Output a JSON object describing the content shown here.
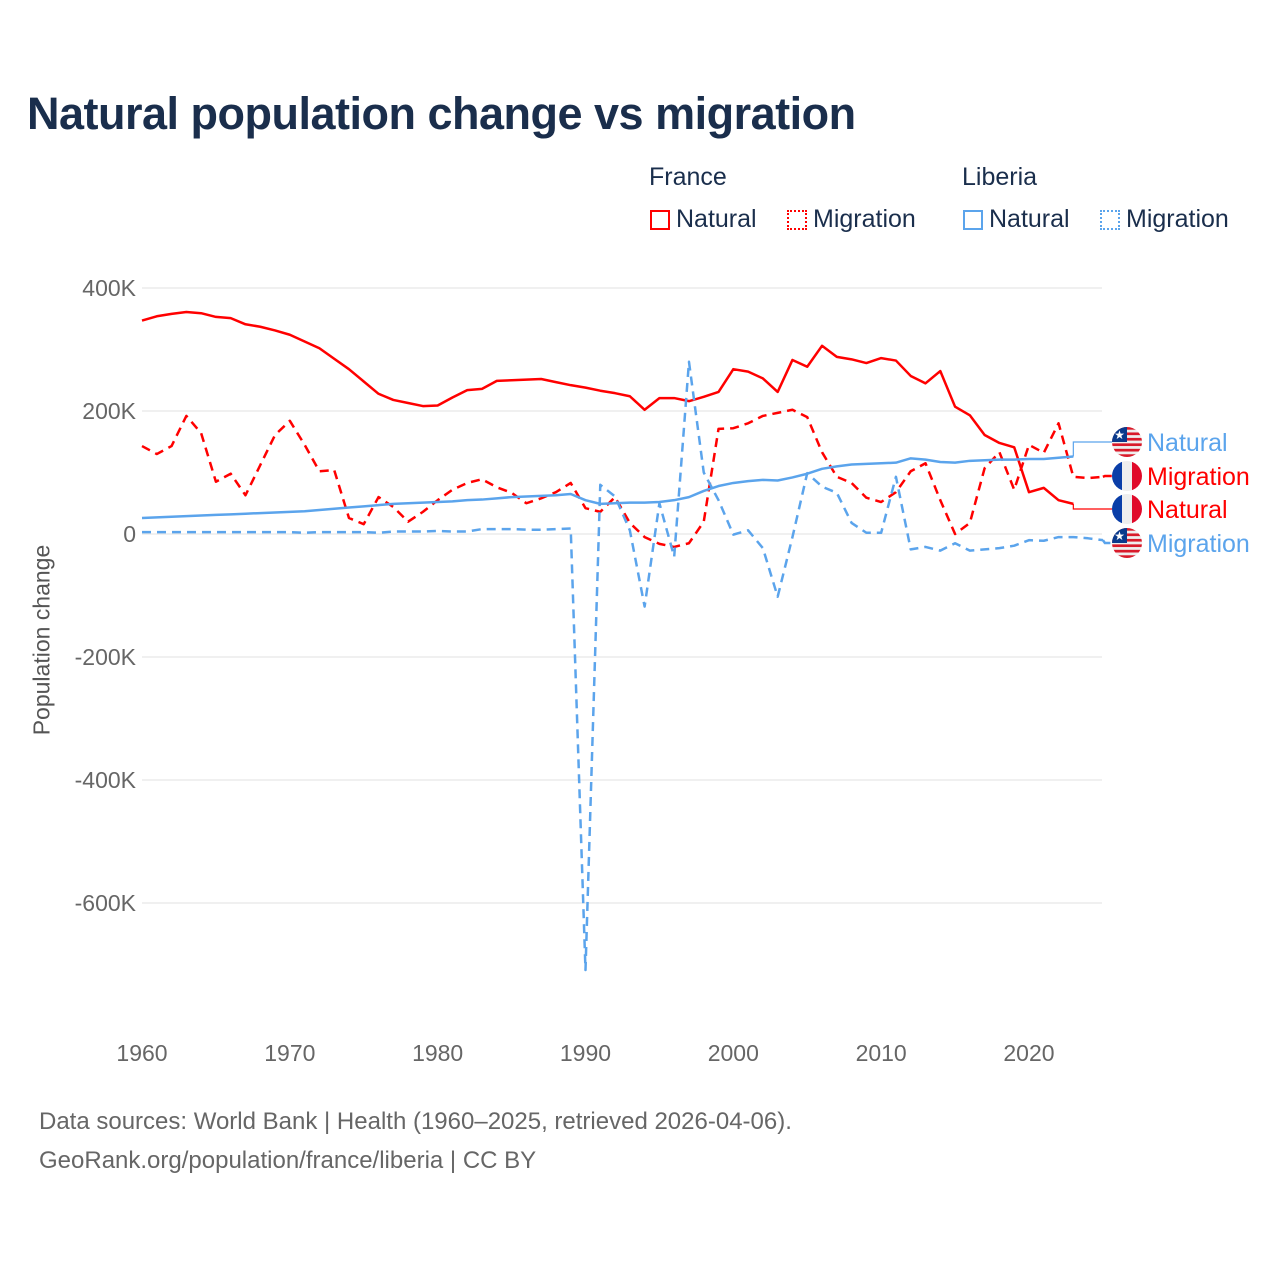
{
  "title": "Natural population change vs migration",
  "legend": {
    "groups": [
      {
        "name": "France",
        "items": [
          {
            "label": "Natural",
            "style": "solid"
          },
          {
            "label": "Migration",
            "style": "dotted"
          }
        ],
        "color": "#ff0000"
      },
      {
        "name": "Liberia",
        "items": [
          {
            "label": "Natural",
            "style": "solid"
          },
          {
            "label": "Migration",
            "style": "dotted"
          }
        ],
        "color": "#5ba4ec"
      }
    ]
  },
  "footer": {
    "source": "Data sources: World Bank | Health (1960–2025, retrieved 2026-04-06).",
    "credit": "GeoRank.org/population/france/liberia | CC BY"
  },
  "chart_data": {
    "type": "line",
    "title": "Natural population change vs migration",
    "xlabel": "",
    "ylabel": "Population change",
    "xlim": [
      1960,
      2025
    ],
    "ylim": [
      -750,
      450
    ],
    "y_unit": "thousands",
    "grid": true,
    "legend_position": "top-right",
    "x_ticks": [
      "1960",
      "1970",
      "1980",
      "1990",
      "2000",
      "2010",
      "2020"
    ],
    "y_ticks": [
      {
        "v": 400,
        "label": "400K"
      },
      {
        "v": 200,
        "label": "200K"
      },
      {
        "v": 0,
        "label": "0"
      },
      {
        "v": -200,
        "label": "-200K"
      },
      {
        "v": -400,
        "label": "-400K"
      },
      {
        "v": -600,
        "label": "-600K"
      }
    ],
    "series": [
      {
        "name": "France Natural",
        "end_label": "Natural",
        "country": "France",
        "color": "#ff0000",
        "dash": "solid",
        "start": 1960,
        "values": [
          347,
          354,
          358,
          361,
          359,
          353,
          351,
          341,
          337,
          331,
          324,
          313,
          302,
          285,
          268,
          248,
          228,
          218,
          213,
          208,
          209,
          222,
          234,
          236,
          249,
          250,
          251,
          252,
          247,
          242,
          238,
          233,
          229,
          224,
          202,
          221,
          221,
          216,
          223,
          231,
          268,
          264,
          253,
          231,
          283,
          272,
          306,
          288,
          284,
          278,
          286,
          282,
          257,
          245,
          265,
          207,
          193,
          161,
          148,
          141,
          68,
          75,
          55,
          49
        ]
      },
      {
        "name": "France Migration",
        "end_label": "Migration",
        "country": "France",
        "color": "#ff0000",
        "dash": "dashed",
        "start": 1960,
        "values": [
          143,
          130,
          143,
          192,
          164,
          85,
          98,
          63,
          112,
          161,
          184,
          145,
          102,
          104,
          26,
          16,
          60,
          44,
          20,
          36,
          55,
          72,
          83,
          89,
          76,
          67,
          50,
          58,
          68,
          83,
          42,
          36,
          60,
          18,
          -5,
          -16,
          -21,
          -15,
          20,
          171,
          172,
          180,
          192,
          197,
          202,
          190,
          133,
          93,
          83,
          59,
          52,
          68,
          102,
          115,
          55,
          0,
          18,
          107,
          133,
          72,
          145,
          132,
          180,
          93,
          91,
          93
        ]
      },
      {
        "name": "Liberia Natural",
        "end_label": "Natural",
        "country": "Liberia",
        "color": "#5ba4ec",
        "dash": "solid",
        "start": 1960,
        "values": [
          26,
          27,
          28,
          29,
          30,
          31,
          32,
          33,
          34,
          35,
          36,
          37,
          39,
          41,
          43,
          45,
          47,
          49,
          50,
          51,
          52,
          53,
          55,
          56,
          58,
          60,
          61,
          62,
          63,
          65,
          55,
          49,
          50,
          51,
          51,
          52,
          55,
          60,
          70,
          78,
          83,
          86,
          88,
          87,
          92,
          98,
          106,
          110,
          113,
          114,
          115,
          116,
          123,
          121,
          117,
          116,
          119,
          120,
          121,
          121,
          122,
          122,
          124,
          126
        ]
      },
      {
        "name": "Liberia Migration",
        "end_label": "Migration",
        "country": "Liberia",
        "color": "#5ba4ec",
        "dash": "dashed",
        "start": 1960,
        "values": [
          3,
          3,
          3,
          3,
          3,
          3,
          3,
          3,
          3,
          3,
          3,
          2,
          3,
          3,
          3,
          3,
          2,
          4,
          4,
          4,
          5,
          4,
          4,
          8,
          8,
          8,
          7,
          7,
          8,
          9,
          -709,
          80,
          61,
          6,
          -118,
          50,
          -37,
          280,
          100,
          55,
          -1,
          6,
          -23,
          -102,
          -5,
          99,
          77,
          67,
          18,
          2,
          2,
          93,
          -25,
          -21,
          -27,
          -15,
          -27,
          -25,
          -23,
          -19,
          -10,
          -11,
          -5,
          -5,
          -7,
          -10
        ]
      }
    ],
    "end_label_order": [
      2,
      1,
      0,
      3
    ]
  }
}
